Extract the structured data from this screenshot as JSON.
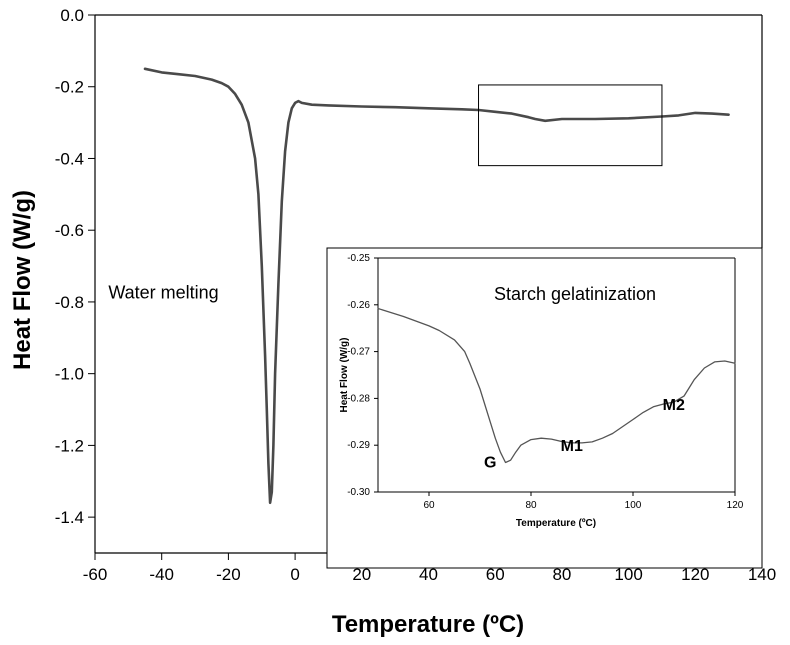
{
  "chart_data": [
    {
      "type": "line",
      "title": "",
      "xlabel": "Temperature (ºC)",
      "ylabel": "Heat Flow (W/g)",
      "xlim": [
        -60,
        140
      ],
      "ylim": [
        -1.5,
        0.0
      ],
      "xticks": [
        -60,
        -40,
        -20,
        0,
        20,
        40,
        60,
        80,
        100,
        120,
        140
      ],
      "yticks": [
        0.0,
        -0.2,
        -0.4,
        -0.6,
        -0.8,
        -1.0,
        -1.2,
        -1.4
      ],
      "ytick_labels": [
        "0.0",
        "-0.2",
        "-0.4",
        "-0.6",
        "-0.8",
        "-1.0",
        "-1.2",
        "-1.4"
      ],
      "grid": false,
      "series": [
        {
          "x": [
            -45,
            -40,
            -35,
            -30,
            -25,
            -22,
            -20,
            -18,
            -16,
            -14,
            -12,
            -11,
            -10,
            -9,
            -8.5,
            -8,
            -7.5,
            -7,
            -6.5,
            -6,
            -5,
            -4,
            -3,
            -2,
            -1,
            0,
            1,
            2,
            5,
            10,
            20,
            30,
            40,
            50,
            55,
            60,
            65,
            70,
            72,
            75,
            80,
            90,
            100,
            110,
            115,
            120,
            125,
            130
          ],
          "y": [
            -0.15,
            -0.16,
            -0.165,
            -0.17,
            -0.18,
            -0.19,
            -0.2,
            -0.22,
            -0.25,
            -0.3,
            -0.4,
            -0.5,
            -0.7,
            -0.95,
            -1.1,
            -1.25,
            -1.36,
            -1.33,
            -1.2,
            -1.0,
            -0.75,
            -0.52,
            -0.38,
            -0.3,
            -0.26,
            -0.245,
            -0.24,
            -0.245,
            -0.25,
            -0.252,
            -0.255,
            -0.257,
            -0.26,
            -0.263,
            -0.265,
            -0.27,
            -0.275,
            -0.285,
            -0.29,
            -0.295,
            -0.29,
            -0.29,
            -0.288,
            -0.283,
            -0.28,
            -0.273,
            -0.275,
            -0.278
          ]
        }
      ],
      "annotations": [
        {
          "text": "Water melting",
          "x": -56,
          "y": -0.79
        }
      ],
      "highlight_box": {
        "x": [
          55,
          110
        ],
        "y": [
          -0.195,
          -0.42
        ]
      }
    },
    {
      "type": "line",
      "title": "Starch gelatinization",
      "xlabel": "Temperature (ºC)",
      "ylabel": "Heat Flow (W/g)",
      "xlim": [
        50,
        120
      ],
      "ylim": [
        -0.3,
        -0.25
      ],
      "xticks": [
        60,
        80,
        100,
        120
      ],
      "yticks": [
        -0.25,
        -0.26,
        -0.27,
        -0.28,
        -0.29,
        -0.3
      ],
      "ytick_labels": [
        "-0.25",
        "-0.26",
        "-0.27",
        "-0.28",
        "-0.29",
        "-0.30"
      ],
      "grid": false,
      "series": [
        {
          "x": [
            50,
            55,
            60,
            62,
            65,
            67,
            68,
            70,
            72,
            73,
            74,
            75,
            76,
            77,
            78,
            80,
            82,
            84,
            86,
            88,
            90,
            92,
            94,
            96,
            98,
            100,
            102,
            104,
            106,
            108,
            110,
            112,
            114,
            116,
            118,
            120
          ],
          "y": [
            -0.2608,
            -0.2625,
            -0.2645,
            -0.2655,
            -0.2675,
            -0.27,
            -0.2725,
            -0.278,
            -0.285,
            -0.2885,
            -0.2915,
            -0.2937,
            -0.2932,
            -0.2915,
            -0.29,
            -0.2888,
            -0.2885,
            -0.2887,
            -0.2892,
            -0.2895,
            -0.2895,
            -0.2893,
            -0.2885,
            -0.2875,
            -0.286,
            -0.2845,
            -0.283,
            -0.2818,
            -0.2812,
            -0.2808,
            -0.2795,
            -0.276,
            -0.2735,
            -0.2722,
            -0.272,
            -0.2725
          ]
        }
      ],
      "peaks": [
        {
          "label": "G",
          "x": 72,
          "y": -0.2948
        },
        {
          "label": "M1",
          "x": 88,
          "y": -0.2912
        },
        {
          "label": "M2",
          "x": 108,
          "y": -0.2825
        }
      ]
    }
  ]
}
